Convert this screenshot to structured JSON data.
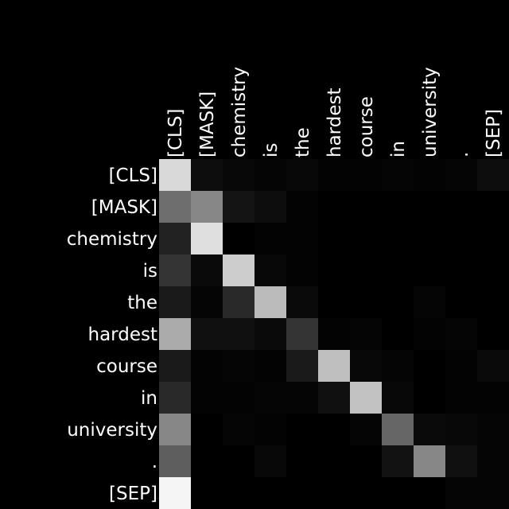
{
  "chart_data": {
    "type": "heatmap",
    "title": "",
    "xlabel": "",
    "ylabel": "",
    "x_tokens": [
      "[CLS]",
      "[MASK]",
      "chemistry",
      "is",
      "the",
      "hardest",
      "course",
      "in",
      "university",
      ".",
      "[SEP]"
    ],
    "y_tokens": [
      "[CLS]",
      "[MASK]",
      "chemistry",
      "is",
      "the",
      "hardest",
      "course",
      "in",
      "university",
      ".",
      "[SEP]"
    ],
    "colormap": "grayscale",
    "value_range": [
      0,
      1
    ],
    "background_color": "#000000",
    "label_color": "#ffffff",
    "values": [
      [
        0.85,
        0.05,
        0.03,
        0.02,
        0.03,
        0.01,
        0.01,
        0.02,
        0.01,
        0.02,
        0.05
      ],
      [
        0.43,
        0.53,
        0.08,
        0.05,
        0.01,
        0.0,
        0.0,
        0.0,
        0.0,
        0.0,
        0.0
      ],
      [
        0.13,
        0.87,
        0.0,
        0.01,
        0.01,
        0.0,
        0.0,
        0.0,
        0.0,
        0.0,
        0.0
      ],
      [
        0.2,
        0.04,
        0.8,
        0.03,
        0.01,
        0.0,
        0.0,
        0.0,
        0.0,
        0.0,
        0.0
      ],
      [
        0.1,
        0.02,
        0.16,
        0.73,
        0.04,
        0.0,
        0.0,
        0.0,
        0.02,
        0.0,
        0.0
      ],
      [
        0.67,
        0.06,
        0.06,
        0.04,
        0.2,
        0.01,
        0.02,
        0.0,
        0.01,
        0.02,
        0.0
      ],
      [
        0.1,
        0.01,
        0.02,
        0.01,
        0.1,
        0.75,
        0.03,
        0.02,
        0.0,
        0.01,
        0.04
      ],
      [
        0.16,
        0.01,
        0.01,
        0.02,
        0.02,
        0.06,
        0.76,
        0.03,
        0.0,
        0.01,
        0.01
      ],
      [
        0.53,
        0.0,
        0.02,
        0.01,
        0.0,
        0.0,
        0.02,
        0.4,
        0.04,
        0.03,
        0.02
      ],
      [
        0.37,
        0.0,
        0.0,
        0.03,
        0.0,
        0.0,
        0.0,
        0.07,
        0.53,
        0.06,
        0.02
      ],
      [
        0.96,
        0.0,
        0.0,
        0.0,
        0.0,
        0.0,
        0.0,
        0.0,
        0.0,
        0.02,
        0.02
      ]
    ]
  }
}
